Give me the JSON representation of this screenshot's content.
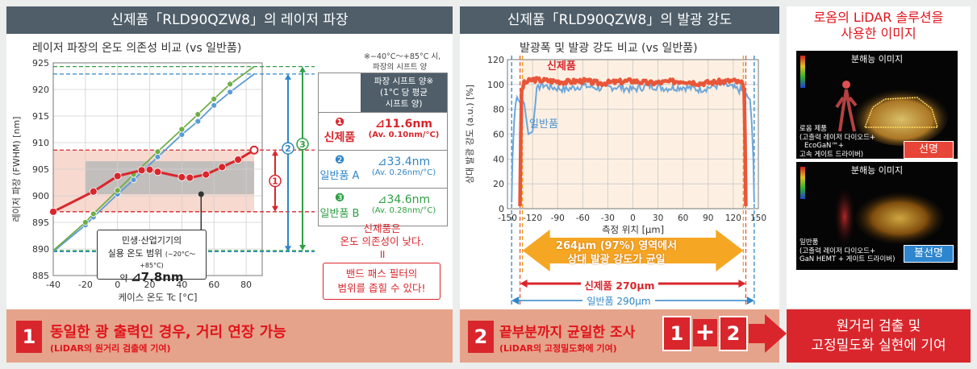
{
  "panel1": {
    "header": "신제품「RLD90QZW8」의 레이저 파장",
    "subtitle": "레이저 파장의 온도 의존성 비교 (vs 일반품)",
    "note1": "※−40°C～+85°C 시,",
    "note2": "파장의 시프트 양",
    "table_header": [
      "파장 시프트 양※",
      "(1°C 당 평균",
      "시프트 양)"
    ],
    "rows": [
      {
        "num": "❶",
        "name": "신제품",
        "shift": "⊿11.6nm",
        "avg": "(Av. 0.10nm/°C)",
        "color": "#d9262c"
      },
      {
        "num": "❷",
        "name": "일반품 A",
        "shift": "⊿33.4nm",
        "avg": "(Av. 0.26nm/°C)",
        "color": "#2f86c8"
      },
      {
        "num": "❸",
        "name": "일반품 B",
        "shift": "⊿34.6nm",
        "avg": "(Av. 0.28nm/°C)",
        "color": "#2ea043"
      }
    ],
    "conclusion1": "신제품은",
    "conclusion2": "온도 의존성이 낮다.",
    "equal": "॥",
    "result1": "밴드 패스 필터의",
    "result2": "범위를 좁힐 수 있다!",
    "callout1": "민생·산업기기의",
    "callout2": "실용 온도 범위",
    "callout2b": "(−20°C～+85°C)",
    "callout3": "약",
    "callout3b": "⊿7.8nm",
    "bracket_labels": [
      "1",
      "2",
      "3"
    ],
    "banner_num": "1",
    "banner_text": "동일한 광 출력인 경우, 거리 연장 가능",
    "banner_sub": "(LiDAR의 원거리 검출에 기여)"
  },
  "panel2": {
    "header": "신제품「RLD90QZW8」의 발광 강도",
    "subtitle": "발광폭 및 발광 강도 비교 (vs 일반품)",
    "label_new": "신제품",
    "label_std": "일반품",
    "arrow_text1": "264μm (97%) 영역에서",
    "arrow_text2": "상대 발광 강도가 균일",
    "width_new": "신제품 270μm",
    "width_std": "일반품 290μm",
    "banner_num": "2",
    "banner_text": "끝부분까지 균일한 조사",
    "banner_sub": "(LiDAR의 고정밀도화에 기여)",
    "combo_a": "1",
    "combo_plus": "+",
    "combo_b": "2"
  },
  "panel3": {
    "title1": "로옴의 LiDAR 솔루션을",
    "title2": "사용한 이미지",
    "img1_title": "분해능 이미지",
    "img1_cap1": "로옴 제품",
    "img1_cap2": "(고출력 레이저 다이오드+",
    "img1_cap3": "EcoGaN™+",
    "img1_cap4": "고속 게이트 드라이버)",
    "img1_badge": "선명",
    "img2_title": "분해능 이미지",
    "img2_cap1": "일반품",
    "img2_cap2": "(고출력 레이저 다이오드+",
    "img2_cap3": "GaN HEMT + 게이트 드라이버)",
    "img2_badge": "불선명",
    "final1": "원거리 검출 및",
    "final2": "고정밀도화 실현에 기여"
  },
  "chart_data": [
    {
      "type": "line",
      "title": "레이저 파장의 온도 의존성 비교 (vs 일반품)",
      "xlabel": "케이스 온도 Tc [°C]",
      "ylabel": "레이저 파장 (FWHM) [nm]",
      "xlim": [
        -40,
        90
      ],
      "ylim": [
        885,
        925
      ],
      "xticks": [
        -40,
        -20,
        0,
        20,
        40,
        60,
        80
      ],
      "yticks": [
        885,
        890,
        895,
        900,
        905,
        910,
        915,
        920,
        925
      ],
      "series": [
        {
          "name": "신제품",
          "color": "#d9262c",
          "x": [
            -40,
            -15,
            0,
            15,
            20,
            25,
            40,
            45,
            55,
            65,
            75,
            85
          ],
          "y": [
            897.0,
            900.8,
            903.7,
            904.8,
            904.9,
            904.5,
            903.5,
            903.4,
            904.0,
            905.4,
            906.8,
            908.6
          ]
        },
        {
          "name": "일반품 A",
          "color": "#5b9bd5",
          "x": [
            -40,
            -20,
            -15,
            0,
            10,
            25,
            40,
            50,
            60,
            70,
            85
          ],
          "y": [
            889.5,
            894.5,
            896.0,
            900.3,
            903.0,
            907.3,
            911.5,
            914.0,
            917.0,
            919.5,
            922.9
          ]
        },
        {
          "name": "일반품 B",
          "color": "#70ad47",
          "x": [
            -40,
            -20,
            -15,
            0,
            10,
            25,
            40,
            50,
            60,
            70,
            85
          ],
          "y": [
            889.7,
            895.0,
            896.6,
            901.0,
            904.0,
            908.3,
            912.5,
            915.3,
            918.2,
            921.0,
            924.3
          ]
        }
      ]
    },
    {
      "type": "line",
      "title": "발광폭 및 발광 강도 비교 (vs 일반품)",
      "xlabel": "측정 위치 [μm]",
      "ylabel": "상대 발광 강도 (a.u.) [%]",
      "xlim": [
        -150,
        150
      ],
      "ylim": [
        0,
        120
      ],
      "xticks": [
        -150,
        -120,
        -90,
        -60,
        -30,
        0,
        30,
        60,
        90,
        120,
        150
      ],
      "yticks": [
        0,
        20,
        40,
        60,
        80,
        100,
        120
      ],
      "series": [
        {
          "name": "신제품",
          "color": "#e8563a",
          "x": [
            -135,
            -134,
            -133,
            -130,
            -120,
            -100,
            -80,
            -60,
            -40,
            -20,
            0,
            20,
            40,
            60,
            80,
            100,
            120,
            130,
            133,
            134,
            135
          ],
          "y": [
            2,
            60,
            95,
            101,
            104,
            103,
            102,
            103,
            101,
            102,
            103,
            101,
            102,
            103,
            101,
            102,
            103,
            101,
            95,
            60,
            2
          ]
        },
        {
          "name": "일반품",
          "color": "#6fa6d8",
          "x": [
            -145,
            -144,
            -142,
            -140,
            -130,
            -125,
            -120,
            -115,
            -110,
            -100,
            -80,
            -60,
            -40,
            -20,
            0,
            20,
            40,
            60,
            80,
            100,
            110,
            120,
            130,
            140,
            142,
            144,
            145
          ],
          "y": [
            5,
            40,
            70,
            88,
            85,
            60,
            62,
            95,
            100,
            98,
            96,
            99,
            97,
            98,
            96,
            99,
            97,
            98,
            96,
            99,
            100,
            97,
            95,
            88,
            70,
            40,
            5
          ]
        }
      ]
    }
  ]
}
